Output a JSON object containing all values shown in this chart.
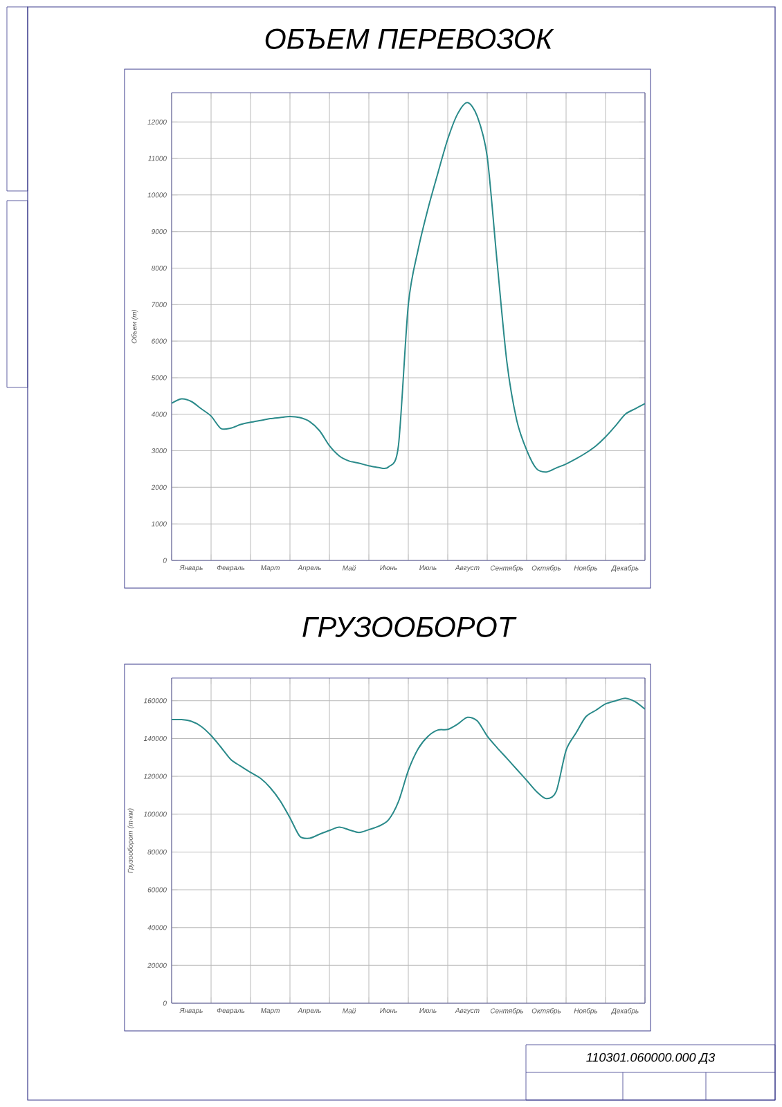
{
  "chart_data": [
    {
      "type": "line",
      "title": "ОБЪЕМ ПЕРЕВОЗОК",
      "ylabel": "Объем (т)",
      "color": "#2a8a8a",
      "grid": true,
      "categories": [
        null,
        null,
        "Январь",
        null,
        null,
        null,
        "Февраль",
        null,
        null,
        null,
        "Март",
        null,
        null,
        null,
        "Апрель",
        null,
        null,
        null,
        "Май",
        null,
        null,
        null,
        "Июнь",
        null,
        null,
        null,
        "Июль",
        null,
        null,
        null,
        "Август",
        null,
        null,
        null,
        "Сентябрь",
        null,
        null,
        null,
        "Октябрь",
        null,
        null,
        null,
        "Ноябрь",
        null,
        null,
        null,
        "Декабрь",
        null,
        null
      ],
      "values": [
        4300,
        4420,
        4350,
        4150,
        3950,
        3610,
        3620,
        3720,
        3780,
        3830,
        3880,
        3910,
        3940,
        3910,
        3800,
        3550,
        3140,
        2860,
        2720,
        2660,
        2590,
        2540,
        2560,
        3140,
        7000,
        8510,
        9630,
        10600,
        11530,
        12220,
        12530,
        12150,
        11050,
        8180,
        5420,
        3830,
        3020,
        2510,
        2420,
        2530,
        2640,
        2780,
        2940,
        3130,
        3380,
        3680,
        4000,
        4150,
        4290
      ],
      "ylim": [
        0,
        12800
      ],
      "yticks": [
        0,
        1000,
        2000,
        3000,
        4000,
        5000,
        6000,
        7000,
        8000,
        9000,
        10000,
        11000,
        12000
      ]
    },
    {
      "type": "line",
      "title": "ГРУЗООБОРОТ",
      "ylabel": "Грузооборот (т·км)",
      "color": "#2a8a8a",
      "grid": true,
      "categories": [
        null,
        null,
        "Январь",
        null,
        null,
        null,
        "Февраль",
        null,
        null,
        null,
        "Март",
        null,
        null,
        null,
        "Апрель",
        null,
        null,
        null,
        "Май",
        null,
        null,
        null,
        "Июнь",
        null,
        null,
        null,
        "Июль",
        null,
        null,
        null,
        "Август",
        null,
        null,
        null,
        "Сентябрь",
        null,
        null,
        null,
        "Октябрь",
        null,
        null,
        null,
        "Ноябрь",
        null,
        null,
        null,
        "Декабрь",
        null,
        null
      ],
      "values": [
        150000,
        150000,
        149100,
        146400,
        141600,
        135400,
        128900,
        125400,
        122100,
        119000,
        114000,
        107100,
        98100,
        88300,
        87300,
        89400,
        91400,
        93100,
        91700,
        90300,
        91800,
        93600,
        97000,
        106600,
        123100,
        134600,
        141200,
        144500,
        144800,
        147600,
        151200,
        149300,
        141300,
        135200,
        129500,
        123700,
        117900,
        112000,
        108200,
        112000,
        133800,
        142900,
        151500,
        154900,
        158300,
        159900,
        161300,
        159500,
        155500
      ],
      "ylim": [
        0,
        172000
      ],
      "yticks": [
        0,
        20000,
        40000,
        60000,
        80000,
        100000,
        120000,
        140000,
        160000
      ],
      "annotations": [
        "110301.060000.000 Д3"
      ]
    }
  ]
}
